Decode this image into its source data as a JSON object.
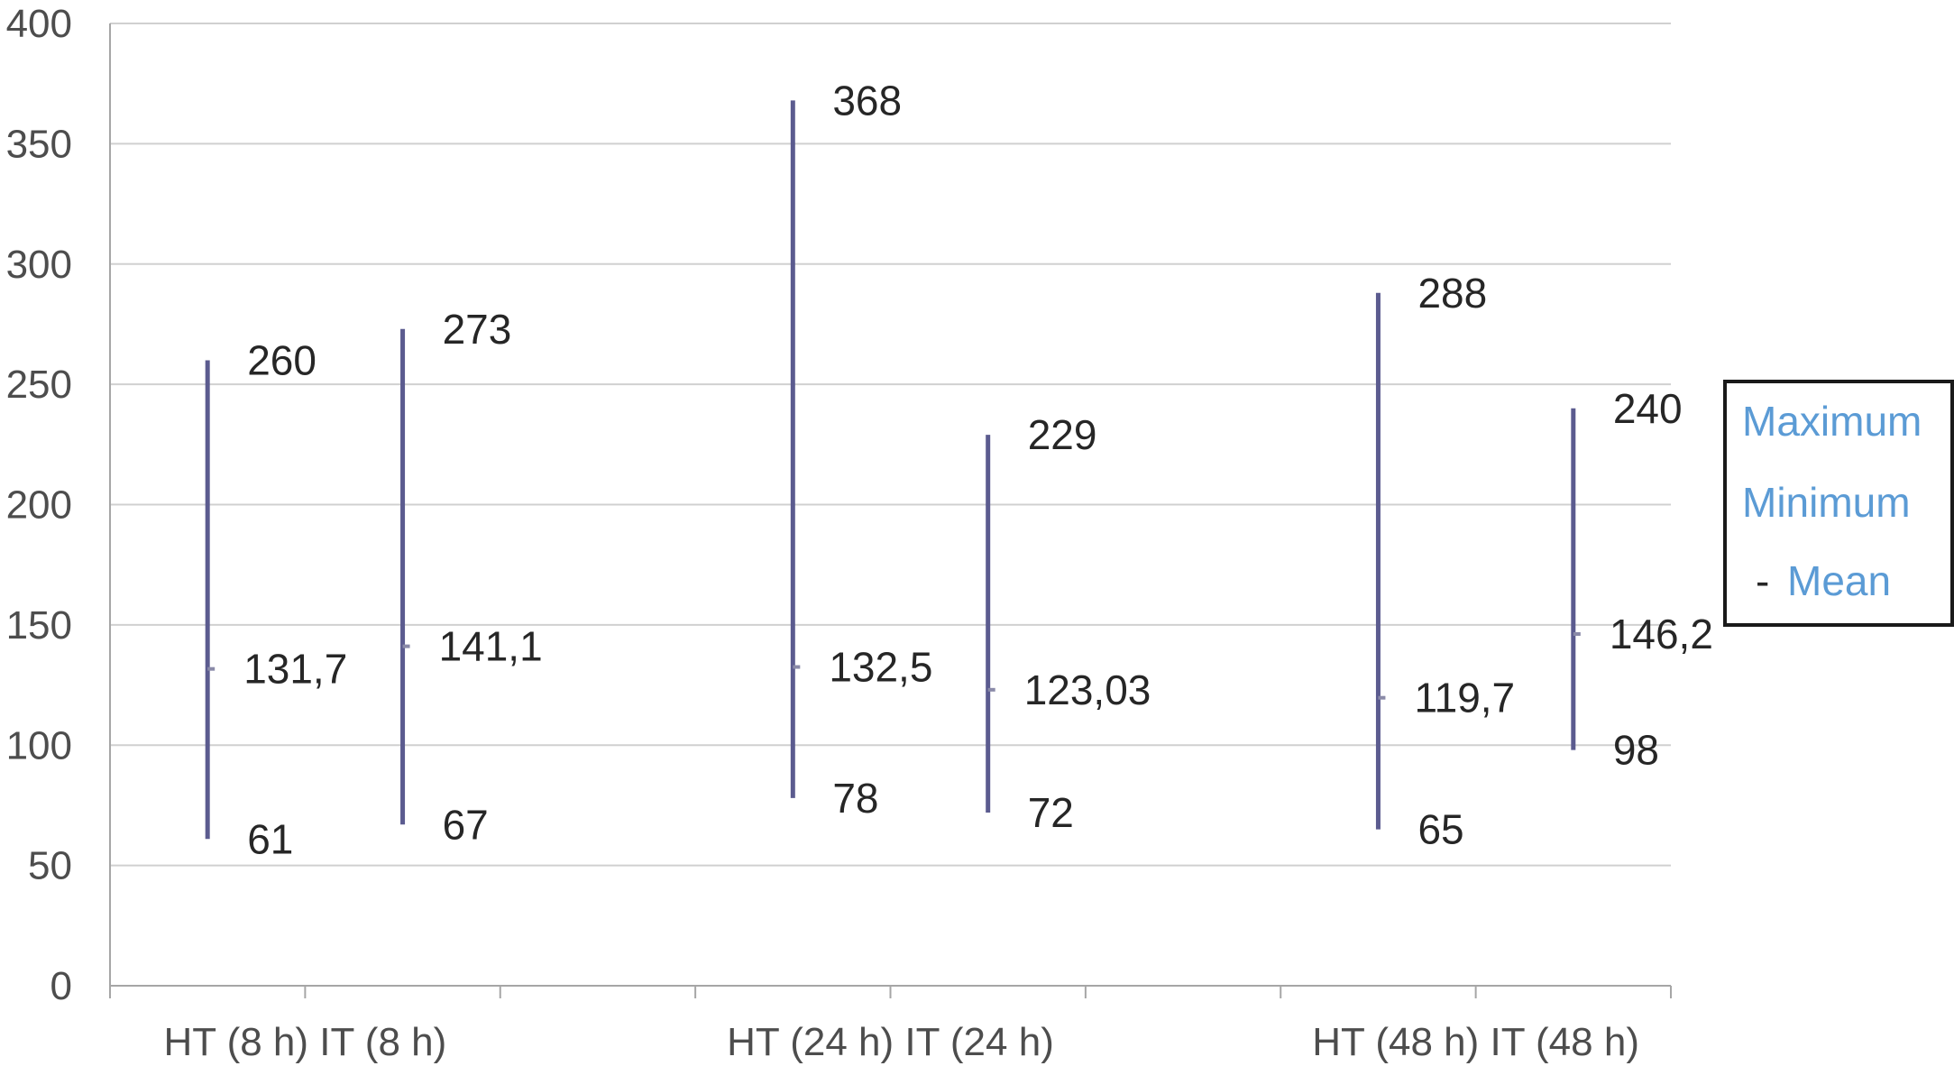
{
  "chart_data": {
    "type": "high-low-mean",
    "groups": [
      "HT (8 h) IT  (8 h)",
      "HT (24 h) IT (24 h)",
      "HT  (48 h) IT  (48 h)"
    ],
    "ylim": [
      0,
      400
    ],
    "yticks": [
      0,
      50,
      100,
      150,
      200,
      250,
      300,
      350,
      400
    ],
    "grid": true,
    "legend_position": "right",
    "colors": {
      "range_line": "#5b5b8f",
      "mean_marker": "#8a8aa8",
      "grid": "#d0d0d0",
      "axis": "#a6a6a6",
      "legend_text": "#5b9bd5"
    },
    "legend": {
      "max": "Maximum",
      "min": "Minimum",
      "mean_dash": "-",
      "mean": "Mean"
    },
    "items": [
      {
        "group": "HT (8 h)",
        "max": 260,
        "min": 61,
        "mean": 131.7,
        "max_label": "260",
        "min_label": "61",
        "mean_label": "131,7"
      },
      {
        "group": "IT (8 h)",
        "max": 273,
        "min": 67,
        "mean": 141.1,
        "max_label": "273",
        "min_label": "67",
        "mean_label": "141,1"
      },
      {
        "group": "HT (24 h)",
        "max": 368,
        "min": 78,
        "mean": 132.5,
        "max_label": "368",
        "min_label": "78",
        "mean_label": "132,5"
      },
      {
        "group": "IT (24 h)",
        "max": 229,
        "min": 72,
        "mean": 123.03,
        "max_label": "229",
        "min_label": "72",
        "mean_label": "123,03"
      },
      {
        "group": "HT (48 h)",
        "max": 288,
        "min": 65,
        "mean": 119.7,
        "max_label": "288",
        "min_label": "65",
        "mean_label": "119,7"
      },
      {
        "group": "IT (48 h)",
        "max": 240,
        "min": 98,
        "mean": 146.2,
        "max_label": "240",
        "min_label": "98",
        "mean_label": "146,2"
      }
    ]
  }
}
